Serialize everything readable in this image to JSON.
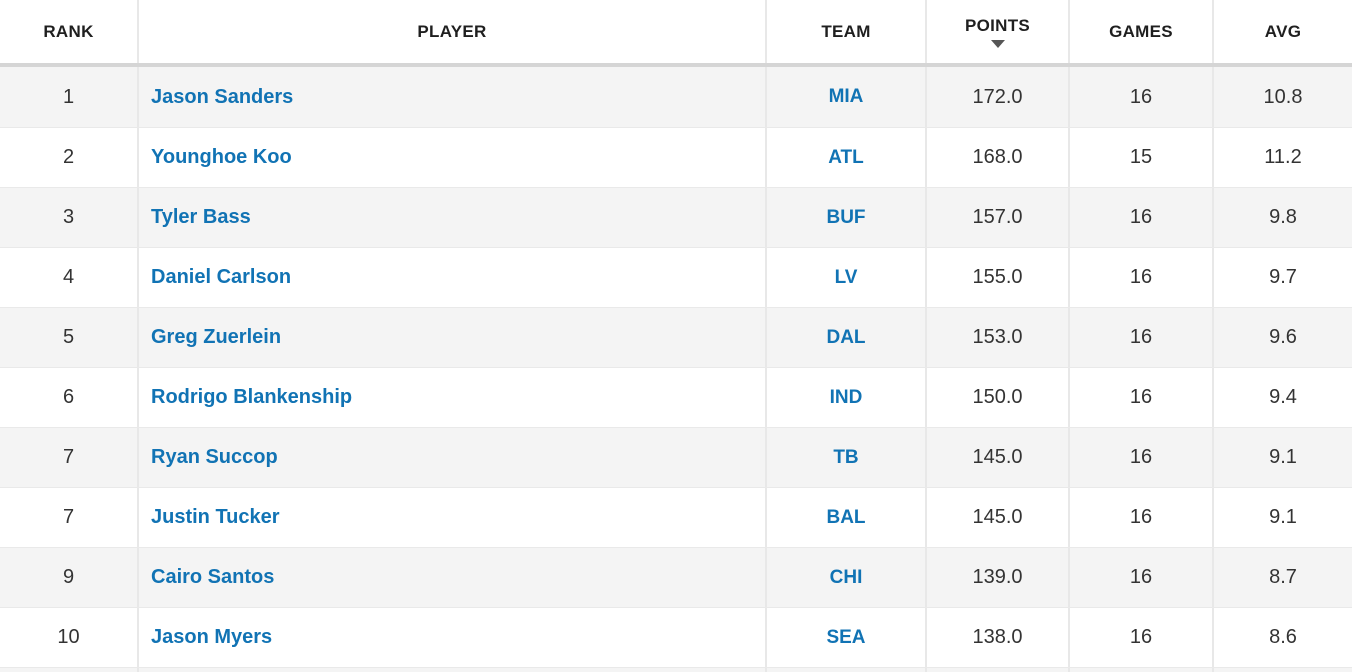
{
  "table": {
    "columns": [
      {
        "id": "rank",
        "label": "RANK"
      },
      {
        "id": "player",
        "label": "PLAYER"
      },
      {
        "id": "team",
        "label": "TEAM"
      },
      {
        "id": "points",
        "label": "POINTS",
        "sorted": "desc"
      },
      {
        "id": "games",
        "label": "GAMES"
      },
      {
        "id": "avg",
        "label": "AVG"
      }
    ],
    "rows": [
      {
        "rank": "1",
        "player": "Jason Sanders",
        "team": "MIA",
        "points": "172.0",
        "games": "16",
        "avg": "10.8"
      },
      {
        "rank": "2",
        "player": "Younghoe Koo",
        "team": "ATL",
        "points": "168.0",
        "games": "15",
        "avg": "11.2"
      },
      {
        "rank": "3",
        "player": "Tyler Bass",
        "team": "BUF",
        "points": "157.0",
        "games": "16",
        "avg": "9.8"
      },
      {
        "rank": "4",
        "player": "Daniel Carlson",
        "team": "LV",
        "points": "155.0",
        "games": "16",
        "avg": "9.7"
      },
      {
        "rank": "5",
        "player": "Greg Zuerlein",
        "team": "DAL",
        "points": "153.0",
        "games": "16",
        "avg": "9.6"
      },
      {
        "rank": "6",
        "player": "Rodrigo Blankenship",
        "team": "IND",
        "points": "150.0",
        "games": "16",
        "avg": "9.4"
      },
      {
        "rank": "7",
        "player": "Ryan Succop",
        "team": "TB",
        "points": "145.0",
        "games": "16",
        "avg": "9.1"
      },
      {
        "rank": "7",
        "player": "Justin Tucker",
        "team": "BAL",
        "points": "145.0",
        "games": "16",
        "avg": "9.1"
      },
      {
        "rank": "9",
        "player": "Cairo Santos",
        "team": "CHI",
        "points": "139.0",
        "games": "16",
        "avg": "8.7"
      },
      {
        "rank": "10",
        "player": "Jason Myers",
        "team": "SEA",
        "points": "138.0",
        "games": "16",
        "avg": "8.6"
      }
    ]
  },
  "icons": {
    "sort_desc_icon": "▼"
  },
  "colors": {
    "link_blue": "#1173b4",
    "header_text": "#1f1f1f",
    "body_text": "#333333",
    "row_alt_bg": "#f4f4f4",
    "column_divider": "#e8e8e8",
    "row_separator": "#e9e9e9",
    "header_separator": "#d5d5d5",
    "sort_arrow": "#565656"
  }
}
